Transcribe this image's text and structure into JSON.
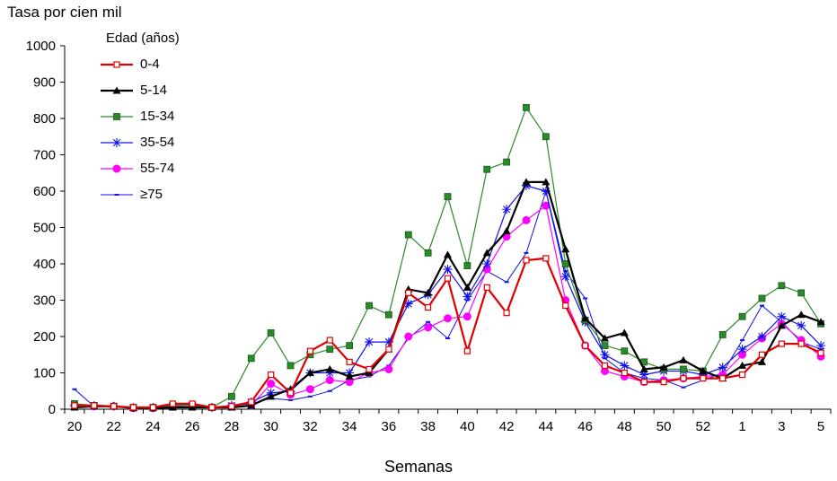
{
  "chart_data": {
    "type": "line",
    "ylabel": "Tasa por cien mil",
    "xlabel": "Semanas",
    "ylim": [
      0,
      1000
    ],
    "yticks": [
      0,
      100,
      200,
      300,
      400,
      500,
      600,
      700,
      800,
      900,
      1000
    ],
    "grid": false,
    "legend": {
      "title": "Edad (años)",
      "placement": "top-left"
    },
    "x": [
      "20",
      "21",
      "22",
      "23",
      "24",
      "25",
      "26",
      "27",
      "28",
      "29",
      "30",
      "31",
      "32",
      "33",
      "34",
      "35",
      "36",
      "37",
      "38",
      "39",
      "40",
      "41",
      "42",
      "43",
      "44",
      "45",
      "46",
      "47",
      "48",
      "49",
      "50",
      "51",
      "52",
      "53",
      "1",
      "2",
      "3",
      "4",
      "5"
    ],
    "xtick_labels": [
      "20",
      "22",
      "24",
      "26",
      "28",
      "30",
      "32",
      "34",
      "36",
      "38",
      "40",
      "42",
      "44",
      "46",
      "48",
      "50",
      "52",
      "1",
      "3",
      "5"
    ],
    "series": [
      {
        "name": "0-4",
        "color": "#e00000",
        "marker": "square-open",
        "linewidth": 2.2,
        "values": [
          10,
          10,
          8,
          5,
          5,
          15,
          15,
          5,
          8,
          20,
          95,
          45,
          160,
          190,
          130,
          110,
          165,
          320,
          280,
          360,
          160,
          335,
          265,
          410,
          415,
          285,
          175,
          120,
          100,
          75,
          75,
          85,
          85,
          85,
          95,
          150,
          180,
          180,
          155
        ]
      },
      {
        "name": "5-14",
        "color": "#000000",
        "marker": "triangle",
        "linewidth": 2.2,
        "values": [
          5,
          8,
          8,
          3,
          3,
          5,
          5,
          5,
          5,
          10,
          35,
          55,
          100,
          110,
          90,
          100,
          165,
          330,
          320,
          425,
          335,
          430,
          490,
          625,
          625,
          440,
          250,
          195,
          210,
          110,
          115,
          135,
          105,
          85,
          120,
          130,
          230,
          260,
          240
        ]
      },
      {
        "name": "15-34",
        "color": "#2a8a2a",
        "marker": "square-filled",
        "linewidth": 1.2,
        "values": [
          15,
          10,
          8,
          5,
          5,
          10,
          10,
          5,
          35,
          140,
          210,
          120,
          150,
          165,
          175,
          285,
          260,
          480,
          430,
          585,
          395,
          660,
          680,
          830,
          750,
          400,
          245,
          175,
          160,
          130,
          110,
          110,
          105,
          205,
          255,
          305,
          340,
          320,
          235
        ]
      },
      {
        "name": "35-54",
        "color": "#1010ee",
        "marker": "asterisk",
        "linewidth": 1.2,
        "values": [
          10,
          10,
          8,
          5,
          5,
          10,
          10,
          5,
          10,
          20,
          45,
          50,
          100,
          100,
          100,
          185,
          185,
          290,
          315,
          385,
          310,
          400,
          550,
          615,
          600,
          365,
          240,
          150,
          120,
          95,
          105,
          105,
          95,
          115,
          165,
          200,
          255,
          230,
          175
        ]
      },
      {
        "name": "55-74",
        "color": "#ff00ff",
        "marker": "circle",
        "linewidth": 1.2,
        "values": [
          10,
          8,
          8,
          3,
          3,
          8,
          10,
          5,
          8,
          10,
          70,
          40,
          55,
          80,
          75,
          100,
          110,
          200,
          225,
          250,
          255,
          385,
          475,
          520,
          560,
          300,
          175,
          105,
          90,
          75,
          80,
          85,
          90,
          95,
          150,
          195,
          235,
          190,
          145
        ]
      },
      {
        "name": "≥75",
        "color": "#1010ee",
        "marker": "dash",
        "linewidth": 1.0,
        "values": [
          55,
          8,
          10,
          3,
          3,
          8,
          5,
          5,
          10,
          15,
          30,
          25,
          35,
          50,
          80,
          90,
          120,
          195,
          240,
          195,
          300,
          380,
          350,
          430,
          600,
          380,
          305,
          140,
          100,
          85,
          80,
          60,
          80,
          100,
          190,
          285,
          240,
          185,
          165
        ]
      }
    ]
  }
}
